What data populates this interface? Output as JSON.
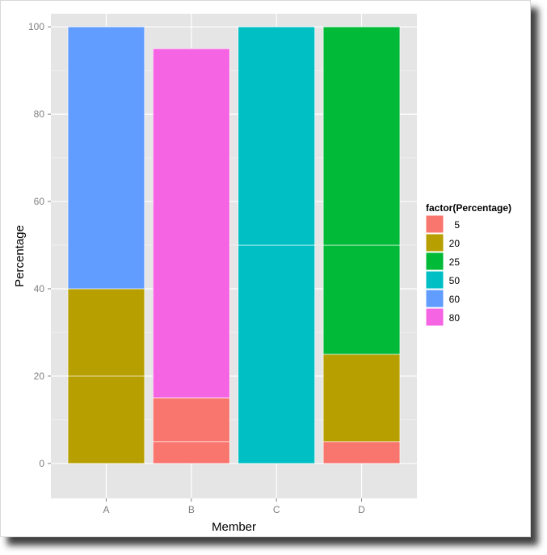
{
  "chart_data": {
    "type": "bar",
    "stacked": true,
    "xlabel": "Member",
    "ylabel": "Percentage",
    "categories": [
      "A",
      "B",
      "C",
      "D"
    ],
    "ylim": [
      -8,
      103
    ],
    "yticks": [
      0,
      20,
      40,
      60,
      80,
      100
    ],
    "grid": true,
    "legend_placement": "right",
    "legend": {
      "title": "factor(Percentage)",
      "entries": [
        {
          "label": "5",
          "color": "#F8766D"
        },
        {
          "label": "20",
          "color": "#B79F00"
        },
        {
          "label": "25",
          "color": "#00BA38"
        },
        {
          "label": "50",
          "color": "#00BFC4"
        },
        {
          "label": "60",
          "color": "#619CFF"
        },
        {
          "label": "80",
          "color": "#F564E3"
        }
      ]
    },
    "bars": [
      {
        "category": "A",
        "segments": [
          {
            "level": "20",
            "value": 20
          },
          {
            "level": "20",
            "value": 20
          },
          {
            "level": "60",
            "value": 60
          }
        ]
      },
      {
        "category": "B",
        "segments": [
          {
            "level": "5",
            "value": 5
          },
          {
            "level": "5",
            "value": 10
          },
          {
            "level": "80",
            "value": 80
          }
        ]
      },
      {
        "category": "C",
        "segments": [
          {
            "level": "50",
            "value": 50
          },
          {
            "level": "50",
            "value": 50
          }
        ]
      },
      {
        "category": "D",
        "segments": [
          {
            "level": "5",
            "value": 5
          },
          {
            "level": "20",
            "value": 20
          },
          {
            "level": "25",
            "value": 25
          },
          {
            "level": "25",
            "value": 50
          }
        ]
      }
    ]
  },
  "colors": {
    "panel_background": "#E5E5E5",
    "grid_major": "#FFFFFF",
    "grid_minor": "#F2F2F2"
  }
}
